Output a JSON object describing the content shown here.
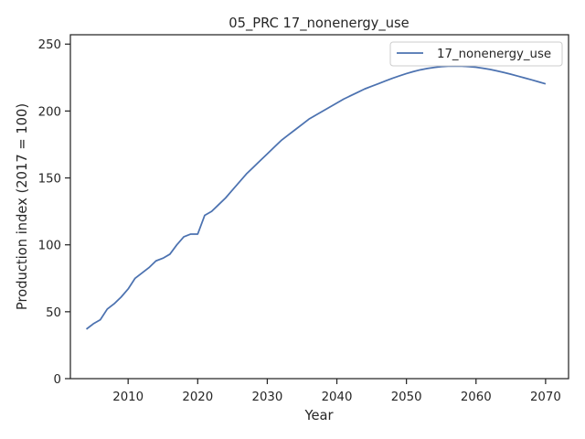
{
  "chart_data": {
    "type": "line",
    "title": "05_PRC 17_nonenergy_use",
    "xlabel": "Year",
    "ylabel": "Production index (2017 = 100)",
    "xlim": [
      2001.7,
      2073.3
    ],
    "ylim": [
      0,
      257
    ],
    "xticks": [
      2010,
      2020,
      2030,
      2040,
      2050,
      2060,
      2070
    ],
    "yticks": [
      0,
      50,
      100,
      150,
      200,
      250
    ],
    "grid": false,
    "legend_position": "top-right",
    "colors": {
      "series": "#4c72b0",
      "axis": "#262626"
    },
    "series": [
      {
        "name": "17_nonenergy_use",
        "x": [
          2004,
          2005,
          2006,
          2007,
          2008,
          2009,
          2010,
          2011,
          2012,
          2013,
          2014,
          2015,
          2016,
          2017,
          2018,
          2019,
          2020,
          2021,
          2022,
          2023,
          2024,
          2025,
          2026,
          2027,
          2028,
          2029,
          2030,
          2031,
          2032,
          2033,
          2034,
          2035,
          2036,
          2037,
          2038,
          2039,
          2040,
          2041,
          2042,
          2043,
          2044,
          2045,
          2046,
          2047,
          2048,
          2049,
          2050,
          2051,
          2052,
          2053,
          2054,
          2055,
          2056,
          2057,
          2058,
          2059,
          2060,
          2061,
          2062,
          2063,
          2064,
          2065,
          2066,
          2067,
          2068,
          2069,
          2070
        ],
        "values": [
          37,
          41,
          44,
          52,
          56,
          61,
          67,
          75,
          79,
          83,
          88,
          90,
          93,
          100,
          106,
          108,
          108,
          122,
          125,
          130,
          135,
          141,
          147,
          153,
          158,
          163,
          168,
          173,
          178,
          182,
          186,
          190,
          194,
          197,
          200,
          203,
          206,
          209,
          211.5,
          214,
          216.5,
          218.5,
          220.5,
          222.5,
          224.5,
          226.3,
          228,
          229.5,
          230.8,
          231.8,
          232.6,
          233.2,
          233.5,
          233.6,
          233.5,
          233.2,
          232.7,
          232,
          231.1,
          230,
          228.8,
          227.5,
          226.1,
          224.7,
          223.3,
          221.8,
          220.3
        ]
      }
    ]
  }
}
